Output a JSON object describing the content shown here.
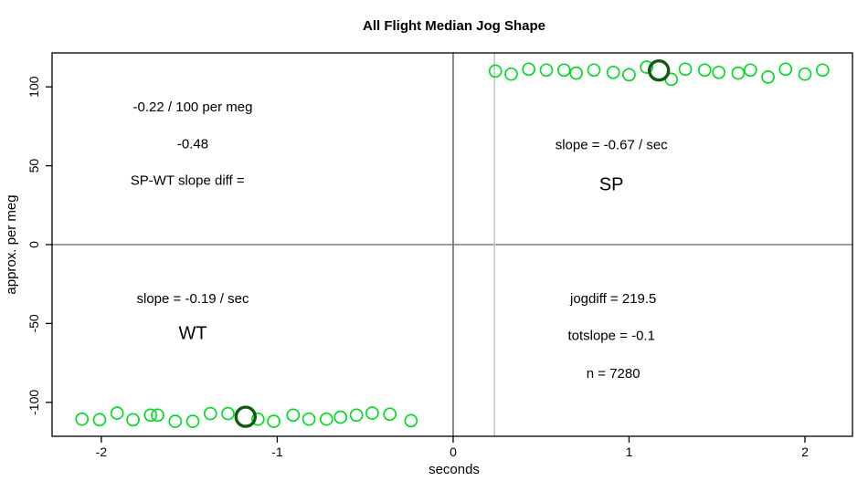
{
  "title": "All Flight Median Jog Shape",
  "chart_data": {
    "type": "scatter",
    "title": "All Flight Median Jog Shape",
    "xlabel": "seconds",
    "ylabel": "approx. per meg",
    "xlim": [
      -2.28,
      2.27
    ],
    "ylim": [
      -121.5,
      121.5
    ],
    "x_ticks": [
      -2,
      -1,
      0,
      1,
      2
    ],
    "y_ticks": [
      -100,
      -50,
      0,
      50,
      100
    ],
    "grid": false,
    "legend": null,
    "marker_style": "open-circle",
    "colors": {
      "point": "#00dd22",
      "median_point": "#0e5c10",
      "zero_h_line": "#7f7f7f",
      "zero_v_line": "#6e6e6e",
      "jog_v_line": "#c8c8c8",
      "box": "#000000"
    },
    "series": [
      {
        "name": "SP",
        "role": "data",
        "color": "#00dd22",
        "points": [
          [
            0.24,
            110.0
          ],
          [
            0.33,
            108.1
          ],
          [
            0.43,
            111.2
          ],
          [
            0.53,
            110.6
          ],
          [
            0.63,
            110.6
          ],
          [
            0.7,
            108.7
          ],
          [
            0.8,
            110.6
          ],
          [
            0.91,
            109.2
          ],
          [
            1.0,
            107.7
          ],
          [
            1.1,
            112.5
          ],
          [
            1.24,
            104.8
          ],
          [
            1.32,
            111.2
          ],
          [
            1.43,
            110.6
          ],
          [
            1.51,
            109.2
          ],
          [
            1.62,
            108.7
          ],
          [
            1.69,
            110.6
          ],
          [
            1.79,
            106.2
          ],
          [
            1.89,
            111.2
          ],
          [
            2.0,
            108.1
          ],
          [
            2.1,
            110.6
          ]
        ]
      },
      {
        "name": "WT",
        "role": "data",
        "color": "#00dd22",
        "points": [
          [
            -2.11,
            -110.6
          ],
          [
            -2.01,
            -111.0
          ],
          [
            -1.91,
            -106.8
          ],
          [
            -1.82,
            -111.0
          ],
          [
            -1.72,
            -108.1
          ],
          [
            -1.68,
            -108.1
          ],
          [
            -1.58,
            -112.0
          ],
          [
            -1.48,
            -112.0
          ],
          [
            -1.38,
            -107.1
          ],
          [
            -1.28,
            -107.1
          ],
          [
            -1.11,
            -110.6
          ],
          [
            -1.02,
            -112.0
          ],
          [
            -0.91,
            -108.1
          ],
          [
            -0.82,
            -110.6
          ],
          [
            -0.72,
            -110.6
          ],
          [
            -0.64,
            -109.4
          ],
          [
            -0.55,
            -108.1
          ],
          [
            -0.46,
            -106.8
          ],
          [
            -0.36,
            -107.5
          ],
          [
            -0.24,
            -111.6
          ]
        ]
      },
      {
        "name": "SP median",
        "role": "median",
        "color": "#0e5c10",
        "points": [
          [
            1.17,
            110.4
          ]
        ]
      },
      {
        "name": "WT median",
        "role": "median",
        "color": "#0e5c10",
        "points": [
          [
            -1.18,
            -109.1
          ]
        ]
      }
    ],
    "reference_lines": [
      {
        "orientation": "horizontal",
        "value": 0,
        "color": "#7f7f7f"
      },
      {
        "orientation": "vertical",
        "value": 0,
        "color": "#6e6e6e"
      },
      {
        "orientation": "vertical",
        "value": 0.235,
        "color": "#c8c8c8"
      }
    ],
    "annotations": [
      {
        "text": "-0.22 / 100 per meg",
        "x": -1.48,
        "y": 84.5,
        "emphasis": false
      },
      {
        "text": "-0.48",
        "x": -1.48,
        "y": 61.0,
        "emphasis": false
      },
      {
        "text": "SP-WT slope diff =",
        "x": -1.51,
        "y": 38.0,
        "emphasis": false
      },
      {
        "text": "slope = -0.67 / sec",
        "x": 0.9,
        "y": 60.5,
        "emphasis": false
      },
      {
        "text": "SP",
        "x": 0.9,
        "y": 34.5,
        "emphasis": true
      },
      {
        "text": "slope = -0.19 / sec",
        "x": -1.48,
        "y": -37.0,
        "emphasis": false
      },
      {
        "text": "WT",
        "x": -1.48,
        "y": -60.0,
        "emphasis": true
      },
      {
        "text": "jogdiff = 219.5",
        "x": 0.91,
        "y": -37.0,
        "emphasis": false
      },
      {
        "text": "totslope = -0.1",
        "x": 0.9,
        "y": -60.5,
        "emphasis": false
      },
      {
        "text": "n = 7280",
        "x": 0.91,
        "y": -84.5,
        "emphasis": false
      }
    ]
  }
}
